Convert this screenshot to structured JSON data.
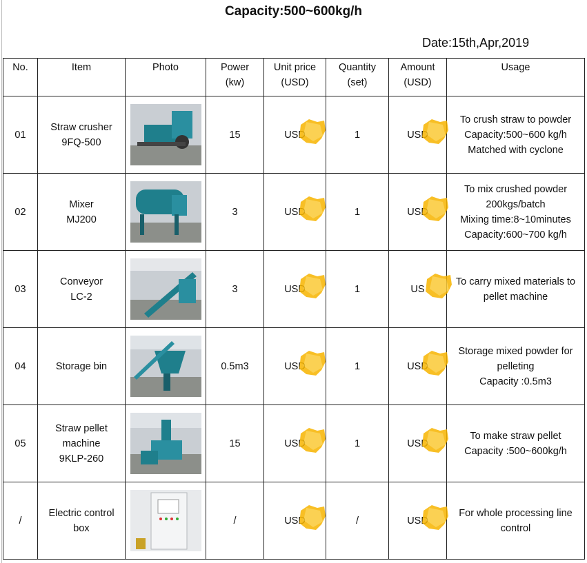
{
  "title": "Capacity:500~600kg/h",
  "date": "Date:15th,Apr,2019",
  "headers": {
    "no": "No.",
    "item": "Item",
    "photo": "Photo",
    "power": [
      "Power",
      "(kw)"
    ],
    "unit_price": [
      "Unit price",
      "(USD)"
    ],
    "quantity": [
      "Quantity",
      "(set)"
    ],
    "amount": [
      "Amount",
      "(USD)"
    ],
    "usage": "Usage"
  },
  "rows": [
    {
      "no": "01",
      "item": [
        "Straw crusher",
        "9FQ-500"
      ],
      "photo_icon": "straw-crusher-photo",
      "power": "15",
      "unit_price": "USD",
      "quantity": "1",
      "amount": "USD",
      "usage": [
        "To crush straw to powder",
        "Capacity:500~600 kg/h",
        "Matched with cyclone"
      ]
    },
    {
      "no": "02",
      "item": [
        "Mixer",
        "MJ200"
      ],
      "photo_icon": "mixer-photo",
      "power": "3",
      "unit_price": "USD",
      "quantity": "1",
      "amount": "USD",
      "usage": [
        "To mix crushed powder",
        "200kgs/batch",
        "Mixing time:8~10minutes",
        "Capacity:600~700 kg/h"
      ]
    },
    {
      "no": "03",
      "item": [
        "Conveyor",
        "LC-2"
      ],
      "photo_icon": "conveyor-photo",
      "power": "3",
      "unit_price": "USD",
      "quantity": "1",
      "amount": "US",
      "usage": [
        "To carry mixed materials to",
        "pellet machine"
      ]
    },
    {
      "no": "04",
      "item": [
        "Storage bin"
      ],
      "photo_icon": "storage-bin-photo",
      "power": "0.5m3",
      "unit_price": "USD",
      "quantity": "1",
      "amount": "USD",
      "usage": [
        "Storage mixed powder for",
        "pelleting",
        "Capacity :0.5m3"
      ]
    },
    {
      "no": "05",
      "item": [
        "Straw pellet",
        "machine",
        "9KLP-260"
      ],
      "photo_icon": "pellet-machine-photo",
      "power": "15",
      "unit_price": "USD",
      "quantity": "1",
      "amount": "USD",
      "usage": [
        "To make straw pellet",
        "Capacity :500~600kg/h"
      ]
    },
    {
      "no": "/",
      "item": [
        "Electric control",
        "box"
      ],
      "photo_icon": "control-box-photo",
      "power": "/",
      "unit_price": "USD",
      "quantity": "/",
      "amount": "USD",
      "usage": [
        "For whole processing line",
        "control"
      ]
    }
  ],
  "colors": {
    "redaction_blot": "#f7b500",
    "machine_teal": "#1f7f8c",
    "grid": "#222222"
  }
}
